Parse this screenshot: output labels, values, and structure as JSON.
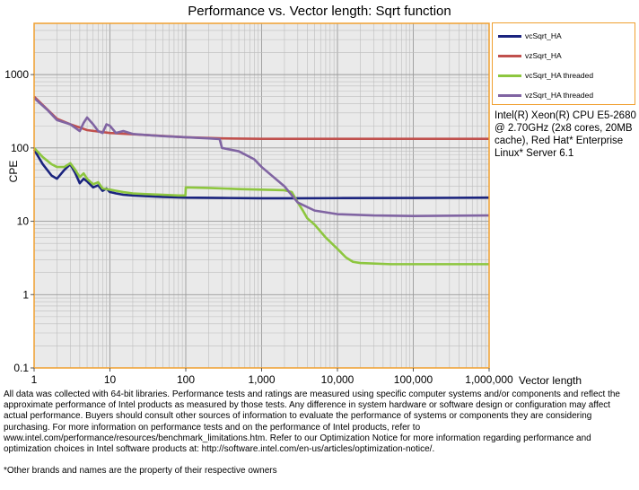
{
  "chart_data": {
    "type": "line",
    "title": "Performance vs. Vector length: Sqrt function",
    "xlabel": "Vector length",
    "ylabel": "CPE",
    "x_scale": "log",
    "y_scale": "log",
    "xlim": [
      1,
      1000000
    ],
    "ylim": [
      0.1,
      5000
    ],
    "x_tick_labels": [
      "1",
      "10",
      "100",
      "1,000",
      "10,000",
      "100,000",
      "1,000,000"
    ],
    "y_tick_labels": [
      "0.1",
      "1",
      "10",
      "100",
      "1000"
    ],
    "grid": true,
    "legend_position": "top-right",
    "series": [
      {
        "name": "vcSqrt_HA",
        "color": "#1a237e",
        "points": [
          [
            1,
            95
          ],
          [
            1.3,
            60
          ],
          [
            1.7,
            42
          ],
          [
            2,
            38
          ],
          [
            2.5,
            50
          ],
          [
            3,
            60
          ],
          [
            3.5,
            45
          ],
          [
            4,
            33
          ],
          [
            4.5,
            38
          ],
          [
            5,
            35
          ],
          [
            6,
            29
          ],
          [
            7,
            31
          ],
          [
            8,
            26
          ],
          [
            9,
            28
          ],
          [
            10,
            25
          ],
          [
            12,
            24
          ],
          [
            15,
            23
          ],
          [
            20,
            22.5
          ],
          [
            30,
            22
          ],
          [
            50,
            21.5
          ],
          [
            100,
            21
          ],
          [
            300,
            20.8
          ],
          [
            1000,
            20.6
          ],
          [
            3000,
            20.6
          ],
          [
            10000,
            20.7
          ],
          [
            100000,
            20.8
          ],
          [
            1000000,
            21
          ]
        ]
      },
      {
        "name": "vzSqrt_HA",
        "color": "#c0504d",
        "points": [
          [
            1,
            500
          ],
          [
            2,
            250
          ],
          [
            3,
            210
          ],
          [
            4,
            190
          ],
          [
            5,
            175
          ],
          [
            10,
            160
          ],
          [
            30,
            150
          ],
          [
            100,
            140
          ],
          [
            300,
            135
          ],
          [
            1000,
            133
          ],
          [
            10000,
            133
          ],
          [
            100000,
            133
          ],
          [
            1000000,
            133
          ]
        ]
      },
      {
        "name": "vcSqrt_HA threaded",
        "color": "#8dc63f",
        "points": [
          [
            1,
            100
          ],
          [
            1.3,
            75
          ],
          [
            1.7,
            60
          ],
          [
            2,
            55
          ],
          [
            2.5,
            55
          ],
          [
            3,
            62
          ],
          [
            3.5,
            50
          ],
          [
            4,
            40
          ],
          [
            4.5,
            45
          ],
          [
            5,
            38
          ],
          [
            6,
            32
          ],
          [
            7,
            34
          ],
          [
            8,
            28
          ],
          [
            10,
            27
          ],
          [
            15,
            25
          ],
          [
            20,
            24
          ],
          [
            30,
            23.5
          ],
          [
            50,
            23
          ],
          [
            80,
            22.5
          ],
          [
            99,
            22.5
          ],
          [
            100,
            29
          ],
          [
            200,
            28.5
          ],
          [
            500,
            27.5
          ],
          [
            1000,
            27
          ],
          [
            2000,
            26.5
          ],
          [
            2500,
            25
          ],
          [
            3000,
            18
          ],
          [
            3500,
            14
          ],
          [
            4000,
            11
          ],
          [
            5000,
            9
          ],
          [
            7000,
            6
          ],
          [
            10000,
            4.2
          ],
          [
            13000,
            3.2
          ],
          [
            16000,
            2.8
          ],
          [
            20000,
            2.7
          ],
          [
            50000,
            2.6
          ],
          [
            100000,
            2.6
          ],
          [
            1000000,
            2.6
          ]
        ]
      },
      {
        "name": "vzSqrt_HA threaded",
        "color": "#8064a2",
        "points": [
          [
            1,
            480
          ],
          [
            1.5,
            330
          ],
          [
            2,
            240
          ],
          [
            3,
            210
          ],
          [
            4,
            170
          ],
          [
            4.5,
            220
          ],
          [
            5,
            260
          ],
          [
            6,
            210
          ],
          [
            7,
            170
          ],
          [
            8,
            160
          ],
          [
            9,
            210
          ],
          [
            10,
            200
          ],
          [
            12,
            160
          ],
          [
            15,
            170
          ],
          [
            20,
            155
          ],
          [
            30,
            150
          ],
          [
            50,
            145
          ],
          [
            100,
            140
          ],
          [
            200,
            135
          ],
          [
            280,
            132
          ],
          [
            300,
            100
          ],
          [
            500,
            90
          ],
          [
            800,
            70
          ],
          [
            1000,
            55
          ],
          [
            2000,
            30
          ],
          [
            3000,
            18
          ],
          [
            5000,
            14
          ],
          [
            10000,
            12.5
          ],
          [
            30000,
            12
          ],
          [
            100000,
            11.8
          ],
          [
            1000000,
            12
          ]
        ]
      }
    ]
  },
  "system_info": "Intel(R) Xeon(R) CPU E5-2680 @ 2.70GHz (2x8 cores, 20MB cache), Red Hat* Enterprise Linux* Server 6.1",
  "disclaimer": "All data was collected with 64-bit libraries. Performance tests and ratings are measured using specific computer systems and/or components and reflect the approximate performance of Intel products as measured by those tests. Any difference in system hardware or software design or configuration may affect actual performance. Buyers should consult other sources of information to evaluate the performance of systems or components they are considering purchasing. For more information on performance tests and on the performance of Intel products, refer to www.intel.com/performance/resources/benchmark_limitations.htm. Refer to our Optimization Notice for more information regarding performance and optimization choices in Intel software products at: http://software.intel.com/en-us/articles/optimization-notice/.",
  "footnote": "*Other brands and names are the property of their respective owners"
}
